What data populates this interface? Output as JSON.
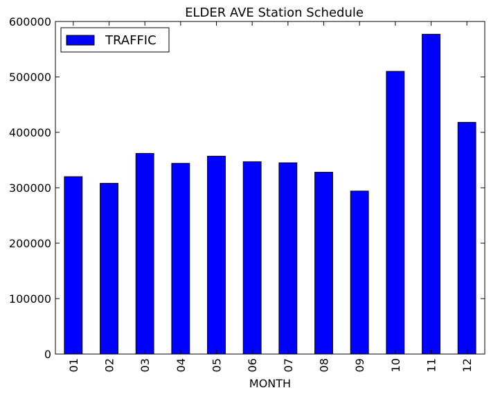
{
  "chart_data": {
    "type": "bar",
    "title": "ELDER AVE Station Schedule",
    "xlabel": "MONTH",
    "ylabel": "",
    "categories": [
      "01",
      "02",
      "03",
      "04",
      "05",
      "06",
      "07",
      "08",
      "09",
      "10",
      "11",
      "12"
    ],
    "series": [
      {
        "name": "TRAFFIC",
        "color": "#0000ff",
        "values": [
          320000,
          308000,
          362000,
          344000,
          357000,
          347000,
          345000,
          328000,
          294000,
          510000,
          577000,
          418000
        ]
      }
    ],
    "ylim": [
      0,
      600000
    ],
    "yticks": [
      0,
      100000,
      200000,
      300000,
      400000,
      500000,
      600000
    ],
    "ytick_labels": [
      "0",
      "100000",
      "200000",
      "300000",
      "400000",
      "500000",
      "600000"
    ],
    "grid": false,
    "legend": "top-left"
  }
}
